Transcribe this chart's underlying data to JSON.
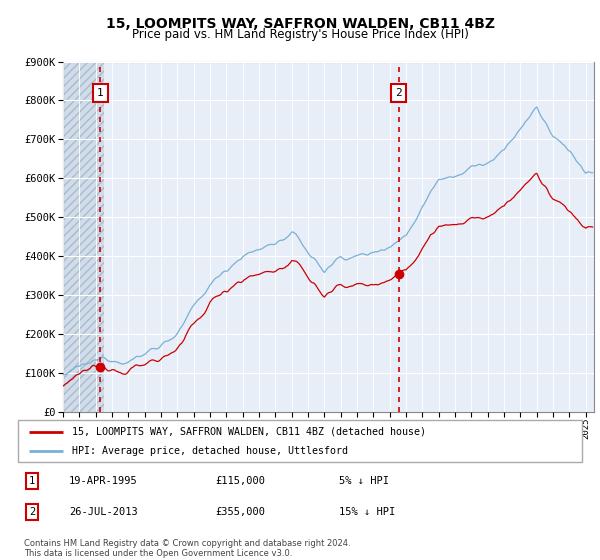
{
  "title": "15, LOOMPITS WAY, SAFFRON WALDEN, CB11 4BZ",
  "subtitle": "Price paid vs. HM Land Registry's House Price Index (HPI)",
  "legend_line1": "15, LOOMPITS WAY, SAFFRON WALDEN, CB11 4BZ (detached house)",
  "legend_line2": "HPI: Average price, detached house, Uttlesford",
  "transaction1_date": 1995.29,
  "transaction1_price": 115000,
  "transaction2_date": 2013.54,
  "transaction2_price": 355000,
  "ylim": [
    0,
    900000
  ],
  "xlim_start": 1993.0,
  "xlim_end": 2025.5,
  "price_color": "#cc0000",
  "hpi_color": "#7ab0d4",
  "hatch_color": "#c8d4e8",
  "grid_color": "#ffffff",
  "bg_color": "#dce6f0",
  "plot_bg": "#e8eef8",
  "footnote": "Contains HM Land Registry data © Crown copyright and database right 2024.\nThis data is licensed under the Open Government Licence v3.0."
}
